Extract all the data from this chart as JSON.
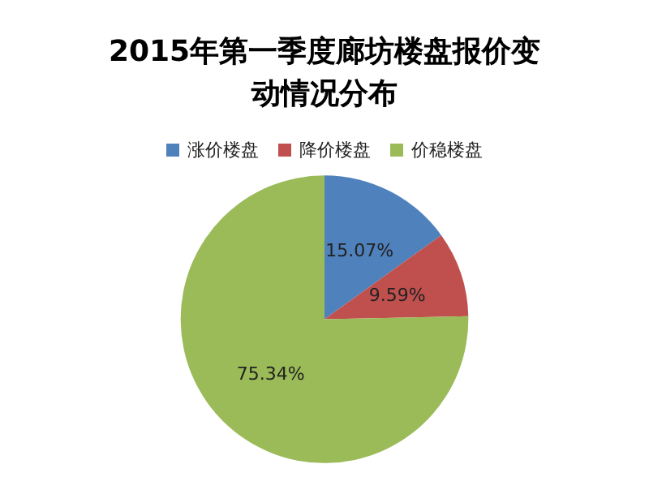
{
  "chart_data": {
    "type": "pie",
    "title": "2015年第一季度廊坊楼盘报价变动情况分布",
    "categories": [
      "涨价楼盘",
      "降价楼盘",
      "价稳楼盘"
    ],
    "values": [
      15.07,
      9.59,
      75.34
    ],
    "colors": [
      "#4f81bd",
      "#c0504d",
      "#9bbb59"
    ],
    "value_labels": [
      "15.07%",
      "9.59%",
      "75.34%"
    ],
    "legend": "top"
  }
}
